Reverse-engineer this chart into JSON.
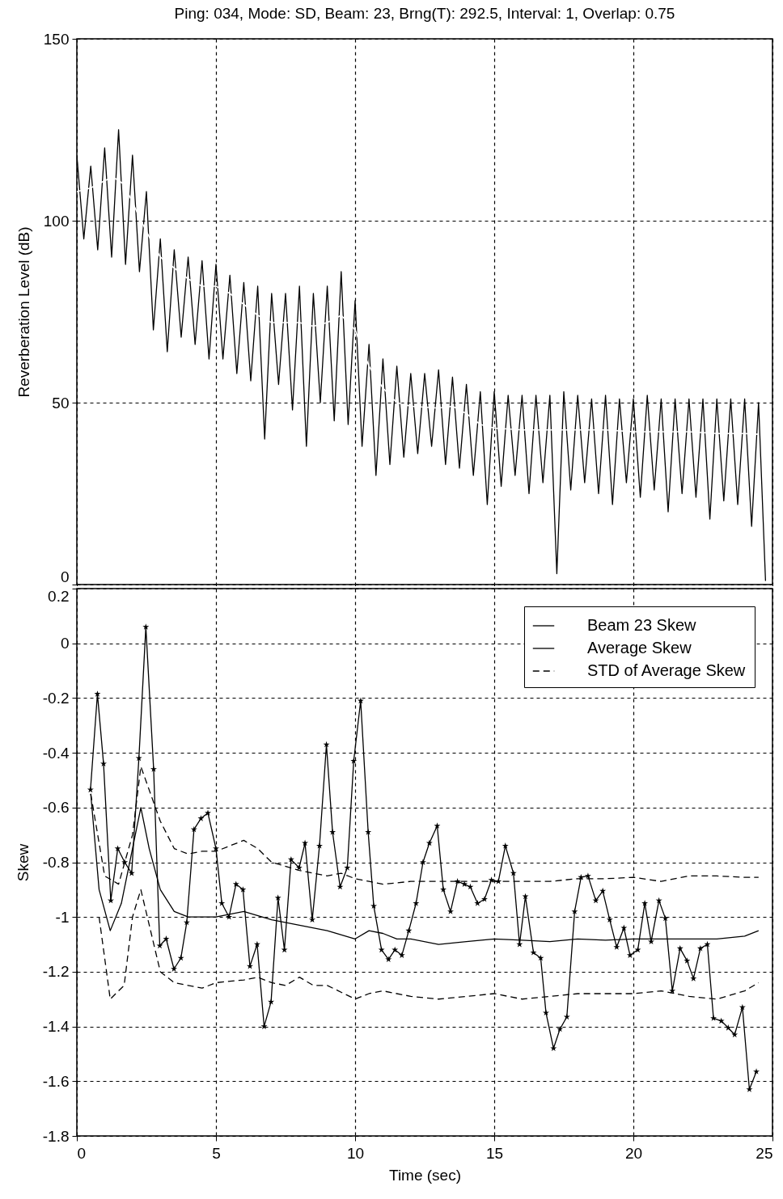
{
  "chart_data": [
    {
      "type": "line",
      "title": "Ping: 034, Mode: SD, Beam: 23, Brng(T): 292.5, Interval: 1, Overlap: 0.75",
      "ylabel": "Reverberation Level (dB)",
      "xlim": [
        0,
        25
      ],
      "xticks": [
        0,
        5,
        10,
        15,
        20,
        25
      ],
      "ylim": [
        0,
        150
      ],
      "yticks": [
        0,
        50,
        100,
        150
      ],
      "grid": true,
      "tick_labels": "y",
      "series": [
        {
          "color": "#000000",
          "x": [
            0,
            0.25,
            0.5,
            0.75,
            1,
            1.25,
            1.5,
            1.75,
            2,
            2.25,
            2.5,
            2.75,
            3,
            3.25,
            3.5,
            3.75,
            4,
            4.25,
            4.5,
            4.75,
            5,
            5.25,
            5.5,
            5.75,
            6,
            6.25,
            6.5,
            6.75,
            7,
            7.25,
            7.5,
            7.75,
            8,
            8.25,
            8.5,
            8.75,
            9,
            9.25,
            9.5,
            9.75,
            10,
            10.25,
            10.5,
            10.75,
            11,
            11.25,
            11.5,
            11.75,
            12,
            12.25,
            12.5,
            12.75,
            13,
            13.25,
            13.5,
            13.75,
            14,
            14.25,
            14.5,
            14.75,
            15,
            15.25,
            15.5,
            15.75,
            16,
            16.25,
            16.5,
            16.75,
            17,
            17.25,
            17.5,
            17.75,
            18,
            18.25,
            18.5,
            18.75,
            19,
            19.25,
            19.5,
            19.75,
            20,
            20.25,
            20.5,
            20.75,
            21,
            21.25,
            21.5,
            21.75,
            22,
            22.25,
            22.5,
            22.75,
            23,
            23.25,
            23.5,
            23.75,
            24,
            24.25,
            24.5,
            24.75
          ],
          "values": [
            118,
            95,
            115,
            92,
            120,
            90,
            125,
            88,
            118,
            86,
            108,
            70,
            95,
            64,
            92,
            68,
            90,
            66,
            89,
            62,
            88,
            62,
            85,
            58,
            83,
            56,
            82,
            40,
            80,
            55,
            80,
            48,
            82,
            38,
            80,
            50,
            82,
            45,
            86,
            44,
            78,
            38,
            66,
            30,
            62,
            33,
            60,
            35,
            58,
            36,
            58,
            38,
            59,
            33,
            57,
            32,
            55,
            30,
            53,
            22,
            53,
            27,
            52,
            30,
            52,
            25,
            52,
            28,
            52,
            3,
            53,
            26,
            52,
            28,
            51,
            25,
            52,
            22,
            51,
            28,
            51,
            24,
            52,
            26,
            51,
            20,
            51,
            25,
            51,
            24,
            51,
            18,
            51,
            23,
            51,
            22,
            51,
            16,
            50,
            1
          ]
        },
        {
          "color": "#ffffff",
          "x": [
            0,
            0.5,
            1,
            1.3,
            1.7,
            2,
            2.5,
            3,
            3.5,
            4,
            4.5,
            5,
            5.5,
            6,
            6.5,
            7,
            7.5,
            8,
            8.5,
            9,
            9.5,
            10,
            10.5,
            11,
            11.5,
            12,
            13,
            13.5,
            14,
            14.5,
            15,
            16,
            17,
            18,
            19,
            20,
            21,
            22,
            23,
            24,
            24.5
          ],
          "values": [
            108,
            109,
            111,
            112,
            110,
            105,
            97,
            90,
            87,
            84,
            82,
            82,
            80,
            77,
            74,
            72,
            72,
            72,
            71,
            72,
            74,
            70,
            60,
            54,
            50,
            49,
            48.5,
            49,
            47,
            44,
            43,
            42.5,
            42.5,
            42.5,
            42.5,
            42,
            42,
            42,
            41.5,
            41.5,
            41.3
          ]
        }
      ]
    },
    {
      "type": "line",
      "xlabel": "Time (sec)",
      "ylabel": "Skew",
      "xlim": [
        0,
        25
      ],
      "xticks": [
        0,
        5,
        10,
        15,
        20,
        25
      ],
      "ylim": [
        -1.8,
        0.2
      ],
      "yticks": [
        -1.8,
        -1.6,
        -1.4,
        -1.2,
        -1,
        -0.8,
        -0.6,
        -0.4,
        -0.2,
        0,
        0.2
      ],
      "grid": true,
      "legend": "top right",
      "series": [
        {
          "name": "Beam 23 Skew",
          "color": "#000000",
          "marker": "star",
          "line_style": "solid",
          "x": [
            0.49,
            0.74,
            0.96,
            1.22,
            1.47,
            1.72,
            1.97,
            2.23,
            2.48,
            2.76,
            2.98,
            3.21,
            3.49,
            3.74,
            3.95,
            4.21,
            4.46,
            4.71,
            5.0,
            5.21,
            5.47,
            5.72,
            5.97,
            6.22,
            6.48,
            6.73,
            6.98,
            7.23,
            7.46,
            7.7,
            7.99,
            8.2,
            8.46,
            8.72,
            8.97,
            9.19,
            9.46,
            9.72,
            9.95,
            10.2,
            10.47,
            10.67,
            10.95,
            11.2,
            11.43,
            11.68,
            11.93,
            12.19,
            12.44,
            12.67,
            12.95,
            13.17,
            13.43,
            13.68,
            13.93,
            14.14,
            14.4,
            14.65,
            14.9,
            15.15,
            15.4,
            15.69,
            15.91,
            16.12,
            16.41,
            16.67,
            16.86,
            17.13,
            17.36,
            17.61,
            17.89,
            18.12,
            18.37,
            18.65,
            18.9,
            19.15,
            19.4,
            19.66,
            19.88,
            20.16,
            20.41,
            20.64,
            20.92,
            21.15,
            21.4,
            21.68,
            21.93,
            22.16,
            22.41,
            22.66,
            22.88,
            23.16,
            23.41,
            23.64,
            23.92,
            24.17,
            24.42
          ],
          "values": [
            -0.535,
            -0.185,
            -0.44,
            -0.94,
            -0.75,
            -0.8,
            -0.84,
            -0.42,
            0.06,
            -0.46,
            -1.105,
            -1.08,
            -1.19,
            -1.15,
            -1.02,
            -0.68,
            -0.64,
            -0.62,
            -0.75,
            -0.95,
            -1.0,
            -0.88,
            -0.9,
            -1.18,
            -1.1,
            -1.4,
            -1.31,
            -0.93,
            -1.12,
            -0.79,
            -0.82,
            -0.73,
            -1.01,
            -0.74,
            -0.37,
            -0.69,
            -0.89,
            -0.82,
            -0.43,
            -0.21,
            -0.69,
            -0.96,
            -1.12,
            -1.155,
            -1.12,
            -1.14,
            -1.05,
            -0.95,
            -0.8,
            -0.73,
            -0.667,
            -0.9,
            -0.98,
            -0.87,
            -0.88,
            -0.89,
            -0.95,
            -0.935,
            -0.865,
            -0.87,
            -0.74,
            -0.84,
            -1.1,
            -0.925,
            -1.13,
            -1.15,
            -1.35,
            -1.48,
            -1.41,
            -1.365,
            -0.98,
            -0.855,
            -0.85,
            -0.94,
            -0.905,
            -1.01,
            -1.11,
            -1.04,
            -1.14,
            -1.12,
            -0.95,
            -1.09,
            -0.94,
            -1.005,
            -1.27,
            -1.115,
            -1.16,
            -1.225,
            -1.115,
            -1.1,
            -1.37,
            -1.38,
            -1.405,
            -1.43,
            -1.33,
            -1.63,
            -1.565
          ]
        },
        {
          "name": "Average Skew",
          "color": "#000000",
          "line_style": "solid",
          "x": [
            0.5,
            0.8,
            1.2,
            1.6,
            2.0,
            2.3,
            2.6,
            3,
            3.5,
            4,
            5,
            6,
            7,
            8,
            9,
            10,
            10.5,
            11,
            11.5,
            12,
            13,
            14,
            15,
            16,
            17,
            18,
            19,
            20,
            21,
            22,
            23,
            24,
            24.5
          ],
          "values": [
            -0.55,
            -0.9,
            -1.05,
            -0.95,
            -0.75,
            -0.6,
            -0.75,
            -0.9,
            -0.98,
            -1.0,
            -1.0,
            -0.98,
            -1.01,
            -1.03,
            -1.05,
            -1.08,
            -1.05,
            -1.06,
            -1.08,
            -1.08,
            -1.1,
            -1.09,
            -1.08,
            -1.085,
            -1.09,
            -1.08,
            -1.085,
            -1.08,
            -1.08,
            -1.08,
            -1.08,
            -1.07,
            -1.05
          ]
        },
        {
          "name": "STD of Average Skew",
          "color": "#000000",
          "line_style": "dashed",
          "x": [
            0.5,
            1.0,
            1.5,
            2.0,
            2.3,
            3,
            3.5,
            4,
            4.5,
            5,
            5.5,
            6,
            6.5,
            7,
            8,
            9,
            9.5,
            10,
            10.5,
            11,
            12,
            13,
            14,
            15,
            16,
            17,
            18,
            19,
            20,
            21,
            22,
            23,
            24,
            24.5
          ],
          "values": [
            -0.55,
            -0.85,
            -0.88,
            -0.7,
            -0.45,
            -0.65,
            -0.75,
            -0.77,
            -0.76,
            -0.76,
            -0.74,
            -0.72,
            -0.75,
            -0.8,
            -0.83,
            -0.85,
            -0.84,
            -0.86,
            -0.87,
            -0.88,
            -0.87,
            -0.87,
            -0.87,
            -0.87,
            -0.87,
            -0.87,
            -0.86,
            -0.86,
            -0.855,
            -0.87,
            -0.85,
            -0.85,
            -0.855,
            -0.855
          ]
        },
        {
          "color": "#000000",
          "line_style": "dashed",
          "x": [
            0.8,
            1.2,
            1.7,
            2.0,
            2.3,
            3,
            3.5,
            4,
            4.5,
            5,
            6,
            6.5,
            7,
            7.5,
            8,
            8.5,
            9,
            10,
            10.5,
            11,
            12,
            13,
            14,
            15,
            16,
            17,
            18,
            19,
            20,
            21,
            22,
            23,
            24,
            24.5
          ],
          "values": [
            -1.0,
            -1.3,
            -1.25,
            -1.0,
            -0.9,
            -1.2,
            -1.24,
            -1.25,
            -1.26,
            -1.24,
            -1.23,
            -1.22,
            -1.24,
            -1.25,
            -1.22,
            -1.25,
            -1.25,
            -1.3,
            -1.28,
            -1.27,
            -1.29,
            -1.3,
            -1.29,
            -1.28,
            -1.3,
            -1.29,
            -1.28,
            -1.28,
            -1.28,
            -1.27,
            -1.29,
            -1.3,
            -1.27,
            -1.24
          ]
        }
      ]
    }
  ]
}
